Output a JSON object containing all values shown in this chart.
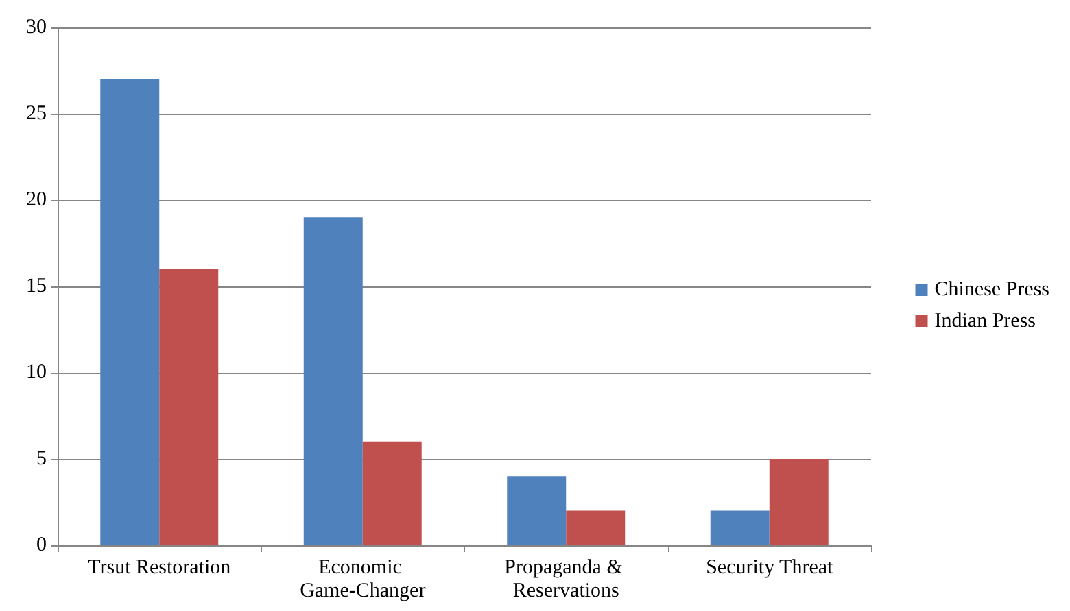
{
  "chart_data": {
    "type": "bar",
    "categories": [
      "Trsut Restoration",
      "Economic Game-Changer",
      "Propaganda & Reservations",
      "Security Threat"
    ],
    "series": [
      {
        "name": "Chinese Press",
        "color": "#4f81bd",
        "values": [
          27,
          19,
          4,
          2
        ]
      },
      {
        "name": "Indian Press",
        "color": "#c0504d",
        "values": [
          16,
          6,
          2,
          5
        ]
      }
    ],
    "ylim": [
      0,
      30
    ],
    "yticks": [
      0,
      5,
      10,
      15,
      20,
      25,
      30
    ],
    "grid": "y",
    "legend": "right"
  }
}
